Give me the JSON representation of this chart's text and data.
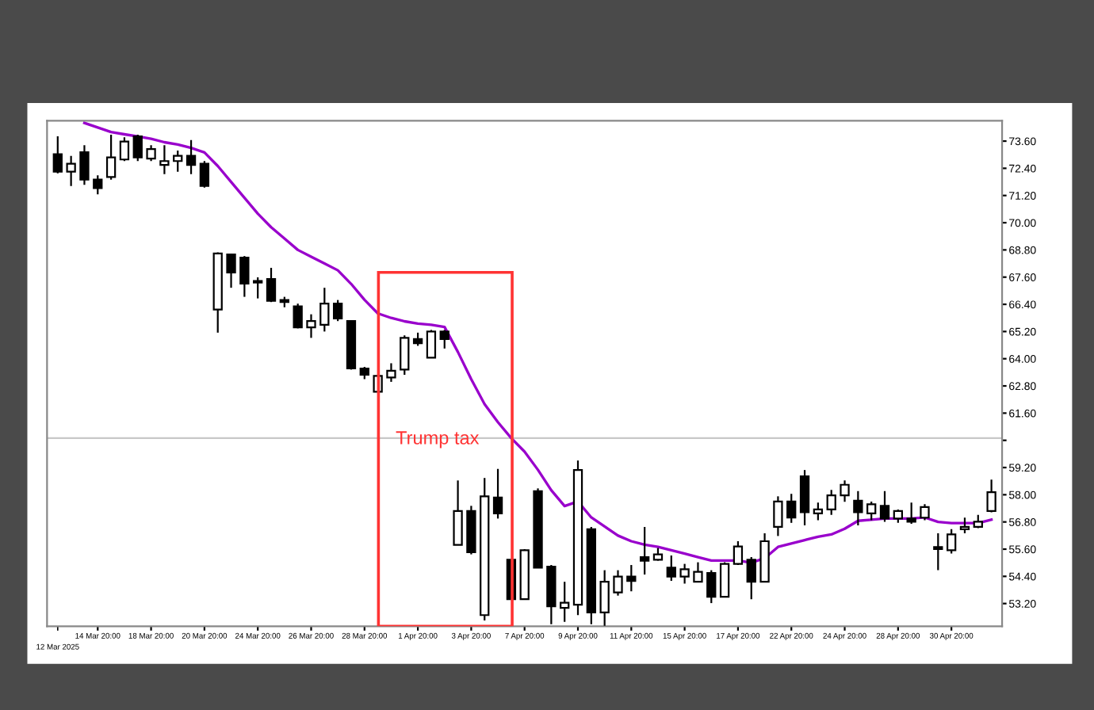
{
  "chart_data": {
    "type": "candlestick",
    "categories": [
      "12 Mar 2025",
      null,
      null,
      "14 Mar 20:00",
      null,
      null,
      null,
      "18 Mar 20:00",
      null,
      null,
      null,
      "20 Mar 20:00",
      null,
      null,
      null,
      "24 Mar 20:00",
      null,
      null,
      null,
      "26 Mar 20:00",
      null,
      null,
      null,
      "28 Mar 20:00",
      null,
      null,
      null,
      "1 Apr 20:00",
      null,
      null,
      null,
      "3 Apr 20:00",
      null,
      null,
      null,
      "7 Apr 20:00",
      null,
      null,
      null,
      "9 Apr 20:00",
      null,
      null,
      null,
      "11 Apr 20:00",
      null,
      null,
      null,
      "15 Apr 20:00",
      null,
      null,
      null,
      "17 Apr 20:00",
      null,
      null,
      null,
      "22 Apr 20:00",
      null,
      null,
      null,
      "24 Apr 20:00",
      null,
      null,
      null,
      "28 Apr 20:00",
      null,
      null,
      null,
      "30 Apr 20:00",
      null,
      null,
      null
    ],
    "ohlc": [
      [
        73.02,
        73.81,
        72.18,
        72.25
      ],
      [
        72.25,
        72.95,
        71.62,
        72.6
      ],
      [
        73.11,
        73.42,
        71.67,
        71.9
      ],
      [
        71.9,
        72.09,
        71.25,
        71.53
      ],
      [
        72.02,
        73.88,
        71.9,
        72.88
      ],
      [
        72.79,
        73.77,
        72.72,
        73.58
      ],
      [
        73.81,
        73.88,
        72.72,
        72.88
      ],
      [
        72.83,
        73.42,
        72.72,
        73.25
      ],
      [
        72.55,
        73.42,
        72.14,
        72.72
      ],
      [
        72.72,
        73.18,
        72.25,
        72.95
      ],
      [
        72.95,
        73.65,
        72.14,
        72.55
      ],
      [
        72.6,
        72.72,
        71.55,
        71.62
      ],
      [
        66.17,
        68.69,
        65.15,
        68.64
      ],
      [
        68.6,
        68.64,
        67.13,
        67.8
      ],
      [
        68.46,
        68.53,
        66.73,
        67.31
      ],
      [
        67.36,
        67.59,
        66.66,
        67.43
      ],
      [
        67.52,
        68.01,
        66.5,
        66.55
      ],
      [
        66.59,
        66.73,
        66.27,
        66.5
      ],
      [
        66.31,
        66.43,
        65.34,
        65.38
      ],
      [
        65.38,
        65.96,
        64.92,
        65.66
      ],
      [
        65.5,
        67.13,
        65.2,
        66.43
      ],
      [
        66.43,
        66.59,
        65.66,
        65.78
      ],
      [
        65.66,
        65.66,
        63.52,
        63.57
      ],
      [
        63.57,
        63.64,
        63.1,
        63.29
      ],
      [
        62.54,
        63.29,
        62.54,
        63.24
      ],
      [
        63.17,
        63.8,
        62.98,
        63.47
      ],
      [
        63.52,
        65.03,
        63.29,
        64.92
      ],
      [
        64.87,
        65.15,
        64.57,
        64.68
      ],
      [
        64.05,
        65.27,
        64.03,
        65.2
      ],
      [
        65.2,
        65.27,
        64.45,
        64.87
      ],
      [
        55.79,
        58.63,
        55.79,
        57.28
      ],
      [
        57.28,
        57.51,
        55.37,
        55.46
      ],
      [
        52.69,
        58.74,
        52.45,
        57.93
      ],
      [
        57.88,
        59.14,
        56.95,
        57.18
      ],
      [
        55.13,
        55.13,
        53.39,
        53.39
      ],
      [
        53.39,
        55.6,
        53.39,
        55.55
      ],
      [
        58.16,
        58.28,
        54.78,
        54.78
      ],
      [
        54.83,
        54.9,
        52.29,
        53.08
      ],
      [
        53.01,
        54.16,
        52.39,
        53.24
      ],
      [
        53.15,
        59.51,
        52.69,
        59.09
      ],
      [
        56.48,
        56.58,
        52.29,
        52.81
      ],
      [
        52.81,
        54.67,
        52.22,
        54.16
      ],
      [
        53.69,
        54.67,
        53.55,
        54.39
      ],
      [
        54.39,
        54.9,
        53.74,
        54.2
      ],
      [
        55.25,
        56.58,
        54.48,
        55.09
      ],
      [
        55.13,
        55.65,
        55.09,
        55.37
      ],
      [
        54.78,
        55.32,
        54.2,
        54.39
      ],
      [
        54.39,
        54.95,
        54.08,
        54.71
      ],
      [
        54.16,
        55.02,
        54.16,
        54.6
      ],
      [
        54.55,
        54.67,
        53.22,
        53.5
      ],
      [
        53.5,
        55.02,
        53.5,
        54.95
      ],
      [
        54.95,
        55.95,
        54.9,
        55.72
      ],
      [
        55.13,
        55.25,
        53.39,
        54.16
      ],
      [
        54.16,
        56.3,
        54.16,
        55.95
      ],
      [
        56.58,
        57.93,
        56.18,
        57.7
      ],
      [
        57.7,
        58.04,
        56.76,
        56.99
      ],
      [
        58.81,
        59.09,
        56.65,
        57.23
      ],
      [
        57.18,
        57.65,
        56.88,
        57.35
      ],
      [
        57.35,
        58.21,
        57.11,
        57.97
      ],
      [
        57.97,
        58.63,
        57.69,
        58.44
      ],
      [
        57.74,
        58.16,
        56.65,
        57.23
      ],
      [
        57.18,
        57.7,
        56.88,
        57.58
      ],
      [
        57.51,
        58.16,
        56.81,
        56.95
      ],
      [
        56.95,
        57.35,
        56.76,
        57.28
      ],
      [
        56.95,
        57.65,
        56.72,
        56.81
      ],
      [
        56.99,
        57.58,
        56.88,
        57.46
      ],
      [
        55.69,
        56.3,
        54.67,
        55.6
      ],
      [
        55.55,
        56.48,
        55.41,
        56.25
      ],
      [
        56.48,
        56.99,
        56.3,
        56.58
      ],
      [
        56.58,
        57.11,
        56.53,
        56.81
      ],
      [
        57.28,
        58.67,
        57.23,
        58.11
      ]
    ],
    "series": [
      {
        "type": "line",
        "color": "#9900cc",
        "values": [
          null,
          null,
          74.4,
          74.2,
          74.0,
          73.9,
          73.81,
          73.7,
          73.55,
          73.45,
          73.3,
          73.1,
          72.5,
          71.8,
          71.1,
          70.4,
          69.8,
          69.3,
          68.8,
          68.5,
          68.2,
          67.9,
          67.3,
          66.6,
          66.0,
          65.8,
          65.65,
          65.55,
          65.5,
          65.4,
          64.3,
          63.1,
          62.0,
          61.2,
          60.5,
          59.9,
          59.1,
          58.2,
          57.5,
          57.7,
          57.0,
          56.6,
          56.2,
          55.95,
          55.8,
          55.7,
          55.55,
          55.4,
          55.25,
          55.1,
          55.1,
          55.1,
          55.0,
          55.2,
          55.7,
          55.85,
          56.0,
          56.15,
          56.25,
          56.5,
          56.85,
          56.9,
          56.95,
          56.95,
          56.95,
          57.0,
          56.8,
          56.75,
          56.75,
          56.75,
          56.9
        ]
      }
    ],
    "ylim": [
      52.2,
      74.5
    ],
    "yticks": [
      {
        "value": 73.6,
        "label": "73.60"
      },
      {
        "value": 72.4,
        "label": "72.40"
      },
      {
        "value": 71.2,
        "label": "71.20"
      },
      {
        "value": 70.0,
        "label": "70.00"
      },
      {
        "value": 68.8,
        "label": "68.80"
      },
      {
        "value": 67.6,
        "label": "67.60"
      },
      {
        "value": 66.4,
        "label": "66.40"
      },
      {
        "value": 65.2,
        "label": "65.20"
      },
      {
        "value": 64.0,
        "label": "64.00"
      },
      {
        "value": 62.8,
        "label": "62.80"
      },
      {
        "value": 61.6,
        "label": "61.60"
      },
      {
        "value": 60.4,
        "label": null
      },
      {
        "value": 59.2,
        "label": "59.20"
      },
      {
        "value": 58.0,
        "label": "58.00"
      },
      {
        "value": 56.8,
        "label": "56.80"
      },
      {
        "value": 55.6,
        "label": "55.60"
      },
      {
        "value": 54.4,
        "label": "54.40"
      },
      {
        "value": 53.2,
        "label": "53.20"
      }
    ],
    "ref_lines": [
      {
        "axis": "y",
        "value": 60.5,
        "color": "#c8c8c8"
      }
    ],
    "annotations": [
      "Trump tax"
    ]
  }
}
